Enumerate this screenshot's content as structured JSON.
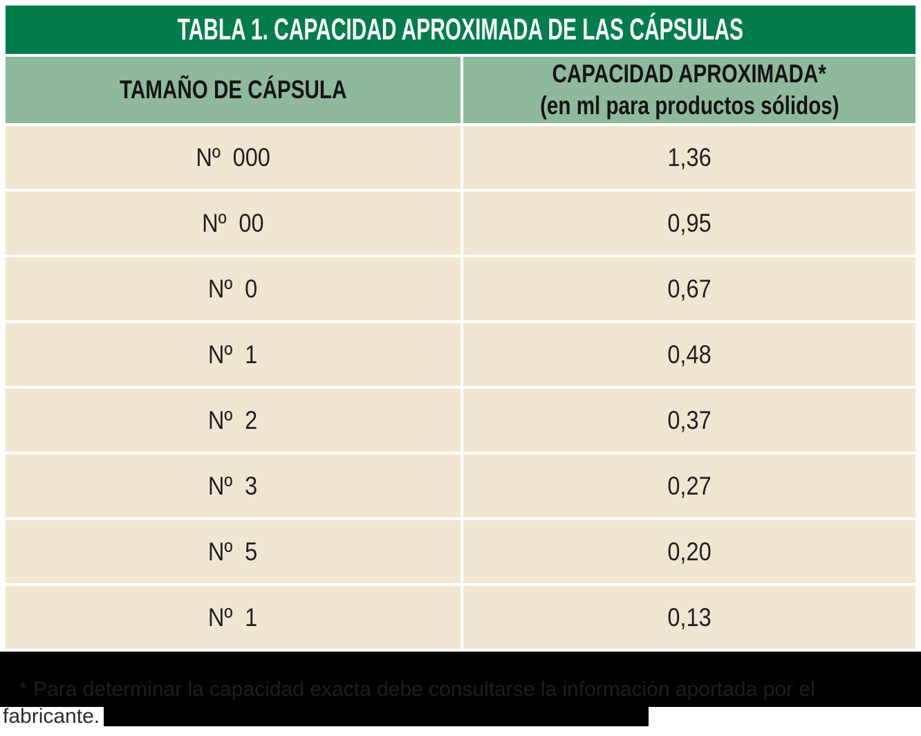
{
  "table": {
    "title": "TABLA 1. CAPACIDAD APROXIMADA DE LAS CÁPSULAS",
    "columns": {
      "size_header": "TAMAÑO DE CÁPSULA",
      "capacity_header_line1": "CAPACIDAD APROXIMADA*",
      "capacity_header_line2": "(en ml para productos sólidos)"
    },
    "rows": [
      {
        "size": "Nº 000",
        "capacity": "1,36"
      },
      {
        "size": "Nº 00",
        "capacity": "0,95"
      },
      {
        "size": "Nº 0",
        "capacity": "0,67"
      },
      {
        "size": "Nº 1",
        "capacity": "0,48"
      },
      {
        "size": "Nº 2",
        "capacity": "0,37"
      },
      {
        "size": "Nº 3",
        "capacity": "0,27"
      },
      {
        "size": "Nº 5",
        "capacity": "0,20"
      },
      {
        "size": "Nº 1",
        "capacity": "0,13"
      }
    ]
  },
  "footnote": {
    "line1": "* Para determinar la capacidad exacta debe consultarse la información aportada por el",
    "line2": "fabricante."
  },
  "colors": {
    "title_bg": "#027c4a",
    "header_bg": "#8fb99c",
    "row_bg": "#f1e6d1",
    "footer_bg": "#000000",
    "cell_text": "#231f20",
    "footnote_faint": "#1e1e1e",
    "footnote_visible": "#2b2b2b"
  }
}
